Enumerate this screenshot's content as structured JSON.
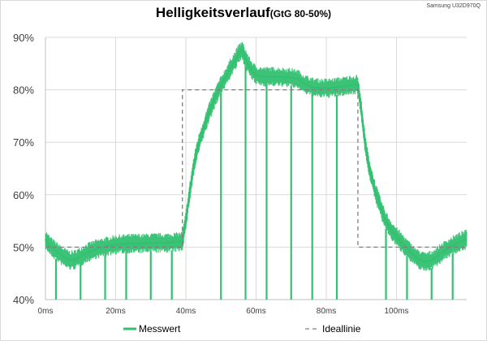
{
  "chart_data": {
    "type": "line",
    "title": "Helligkeitsverlauf",
    "subtitle": "(GtG 80-50%)",
    "device": "Samsung U32D970Q",
    "xlabel": "",
    "ylabel": "",
    "x_unit": "ms",
    "xlim": [
      0,
      120
    ],
    "ylim": [
      40,
      90
    ],
    "x_ticks": [
      0,
      20,
      40,
      60,
      80,
      100
    ],
    "x_tick_labels": [
      "0ms",
      "20ms",
      "40ms",
      "60ms",
      "80ms",
      "100ms"
    ],
    "y_ticks": [
      40,
      50,
      60,
      70,
      80,
      90
    ],
    "y_tick_labels": [
      "40%",
      "50%",
      "60%",
      "70%",
      "80%",
      "90%"
    ],
    "grid": true,
    "legend_position": "bottom",
    "series": [
      {
        "name": "Messwert",
        "color": "#33c070",
        "style": "solid",
        "x": [
          0,
          1,
          2,
          3,
          4,
          5,
          6,
          7,
          8,
          10,
          12,
          14,
          16,
          18,
          20,
          22,
          24,
          26,
          28,
          30,
          32,
          34,
          36,
          38,
          39,
          40,
          41,
          42,
          43,
          44,
          45,
          46,
          47,
          48,
          49,
          50,
          51,
          52,
          53,
          54,
          55,
          56,
          57,
          58,
          59,
          60,
          62,
          64,
          66,
          68,
          70,
          72,
          74,
          76,
          78,
          80,
          82,
          84,
          86,
          88,
          89,
          90,
          91,
          92,
          93,
          94,
          95,
          96,
          97,
          98,
          99,
          100,
          102,
          104,
          106,
          108,
          110,
          112,
          114,
          116,
          118,
          120
        ],
        "y": [
          51.5,
          50.5,
          49.8,
          49.3,
          48.7,
          48.2,
          47.8,
          47.5,
          47.5,
          48.2,
          49.0,
          49.5,
          49.9,
          50.2,
          50.5,
          50.6,
          50.7,
          50.7,
          50.7,
          50.8,
          50.8,
          50.8,
          50.9,
          51.0,
          51.2,
          55.0,
          60.0,
          64.5,
          68.0,
          70.5,
          72.5,
          74.5,
          76.3,
          78.0,
          79.5,
          80.8,
          82.0,
          83.3,
          84.5,
          85.5,
          86.8,
          87.5,
          86.0,
          84.5,
          83.5,
          82.8,
          82.5,
          82.5,
          82.5,
          82.4,
          82.3,
          82.0,
          81.0,
          80.5,
          80.3,
          80.3,
          80.4,
          80.6,
          80.8,
          81.0,
          81.0,
          76.0,
          70.0,
          66.0,
          63.0,
          60.5,
          58.5,
          56.5,
          55.0,
          53.8,
          52.8,
          52.0,
          50.5,
          49.0,
          47.8,
          47.2,
          47.5,
          48.5,
          49.5,
          50.3,
          51.0,
          51.5
        ]
      },
      {
        "name": "Ideallinie",
        "color": "#7f7f7f",
        "style": "dashed",
        "x": [
          0,
          39,
          39,
          89,
          89,
          120
        ],
        "y": [
          50,
          50,
          80,
          80,
          50,
          50
        ]
      }
    ],
    "vertical_markers_ms": [
      3,
      10,
      17,
      23,
      30,
      36,
      50,
      57,
      63,
      70,
      76,
      83,
      97,
      103,
      110,
      116
    ]
  }
}
